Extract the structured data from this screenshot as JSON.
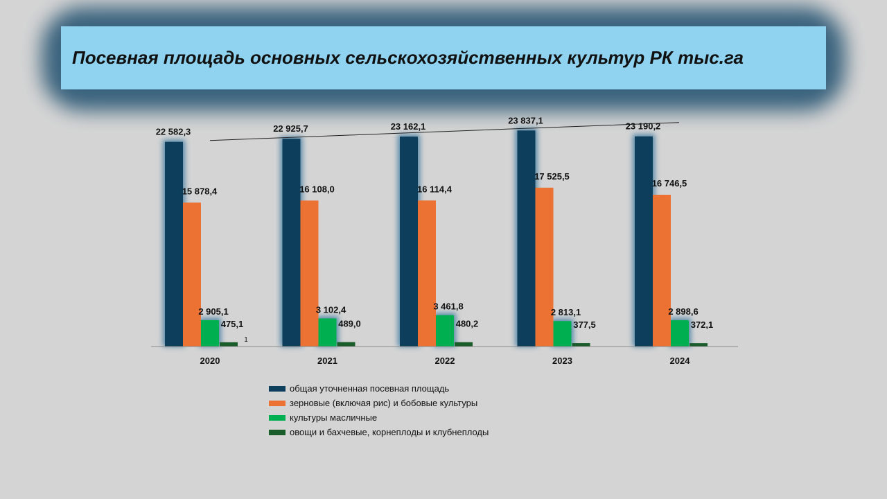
{
  "title": "Посевная площадь основных сельскохозяйственных культур РК тыс.га",
  "chart_data": {
    "type": "bar",
    "categories": [
      "2020",
      "2021",
      "2022",
      "2023",
      "2024"
    ],
    "ylim": [
      0,
      26000
    ],
    "grid": false,
    "legend_position": "bottom",
    "series": [
      {
        "name": "общая уточненная посевная площадь",
        "color": "#0d3f5c",
        "values": [
          22582.3,
          22925.7,
          23162.1,
          23837.1,
          23190.2
        ],
        "labels": [
          "22 582,3",
          "22 925,7",
          "23 162,1",
          "23 837,1",
          "23 190,2"
        ]
      },
      {
        "name": "зерновые (включая рис) и бобовые культуры",
        "color": "#eb7232",
        "values": [
          15878.4,
          16108.0,
          16114.4,
          17525.5,
          16746.5
        ],
        "labels": [
          "15 878,4",
          "16 108,0",
          "16 114,4",
          "17 525,5",
          "16 746,5"
        ]
      },
      {
        "name": "культуры масличные",
        "color": "#00b050",
        "values": [
          2905.1,
          3102.4,
          3461.8,
          2813.1,
          2898.6
        ],
        "labels": [
          "2 905,1",
          "3 102,4",
          "3 461,8",
          "2 813,1",
          "2 898,6"
        ]
      },
      {
        "name": "овощи и бахчевые, корнеплоды и клубнеплоды",
        "color": "#1a5c2a",
        "values": [
          475.1,
          489.0,
          480.2,
          377.5,
          372.1
        ],
        "labels": [
          "475,1",
          "489,0",
          "480,2",
          "377,5",
          "372,1"
        ]
      }
    ],
    "annotations": [
      "1"
    ]
  }
}
